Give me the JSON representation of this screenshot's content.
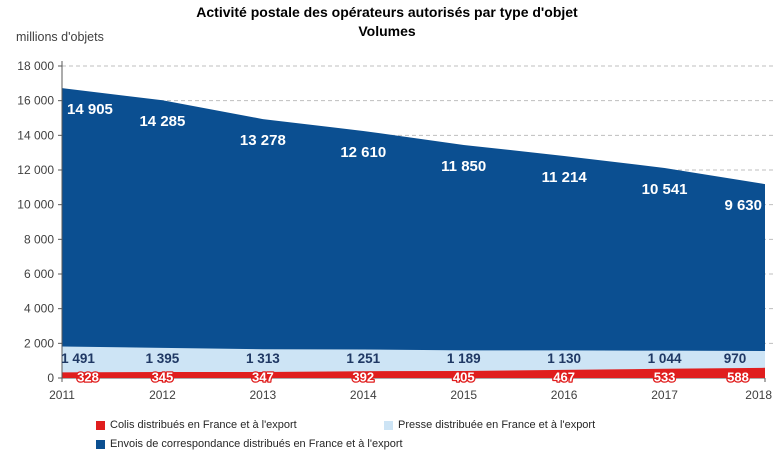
{
  "chart_data": {
    "type": "area",
    "stacked": true,
    "title": "Activité postale des opérateurs autorisés par type d'objet",
    "subtitle": "Volumes",
    "ylabel": "millions d'objets",
    "categories": [
      "2011",
      "2012",
      "2013",
      "2014",
      "2015",
      "2016",
      "2017",
      "2018"
    ],
    "series": [
      {
        "name": "Colis distribués en France et à l'export",
        "color": "#E01E1E",
        "values": [
          328,
          345,
          347,
          392,
          405,
          467,
          533,
          588
        ]
      },
      {
        "name": "Presse distribuée en France et à l'export",
        "color": "#CDE4F5",
        "values": [
          1491,
          1395,
          1313,
          1251,
          1189,
          1130,
          1044,
          970
        ]
      },
      {
        "name": "Envois de correspondance distribués en France et à l'export",
        "color": "#0B4F91",
        "values": [
          14905,
          14285,
          13278,
          12610,
          11850,
          11214,
          10541,
          9630
        ]
      }
    ],
    "ylim": [
      0,
      18000
    ],
    "ytick_step": 2000,
    "ytick_labels": [
      "0",
      "2 000",
      "4 000",
      "6 000",
      "8 000",
      "10 000",
      "12 000",
      "14 000",
      "16 000",
      "18 000"
    ],
    "grid": "dashed horizontal",
    "legend_position": "bottom",
    "axis_color": "#595959",
    "grid_color": "#BFBFBF",
    "label_color_presse": "#1F3864"
  }
}
